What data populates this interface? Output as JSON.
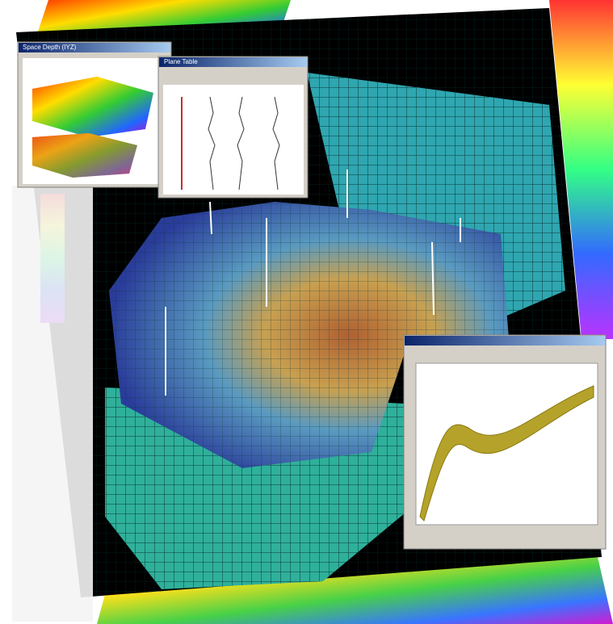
{
  "windows": [
    {
      "title": "Space Depth (IYZ)"
    },
    {
      "title": "Plane Table"
    }
  ]
}
